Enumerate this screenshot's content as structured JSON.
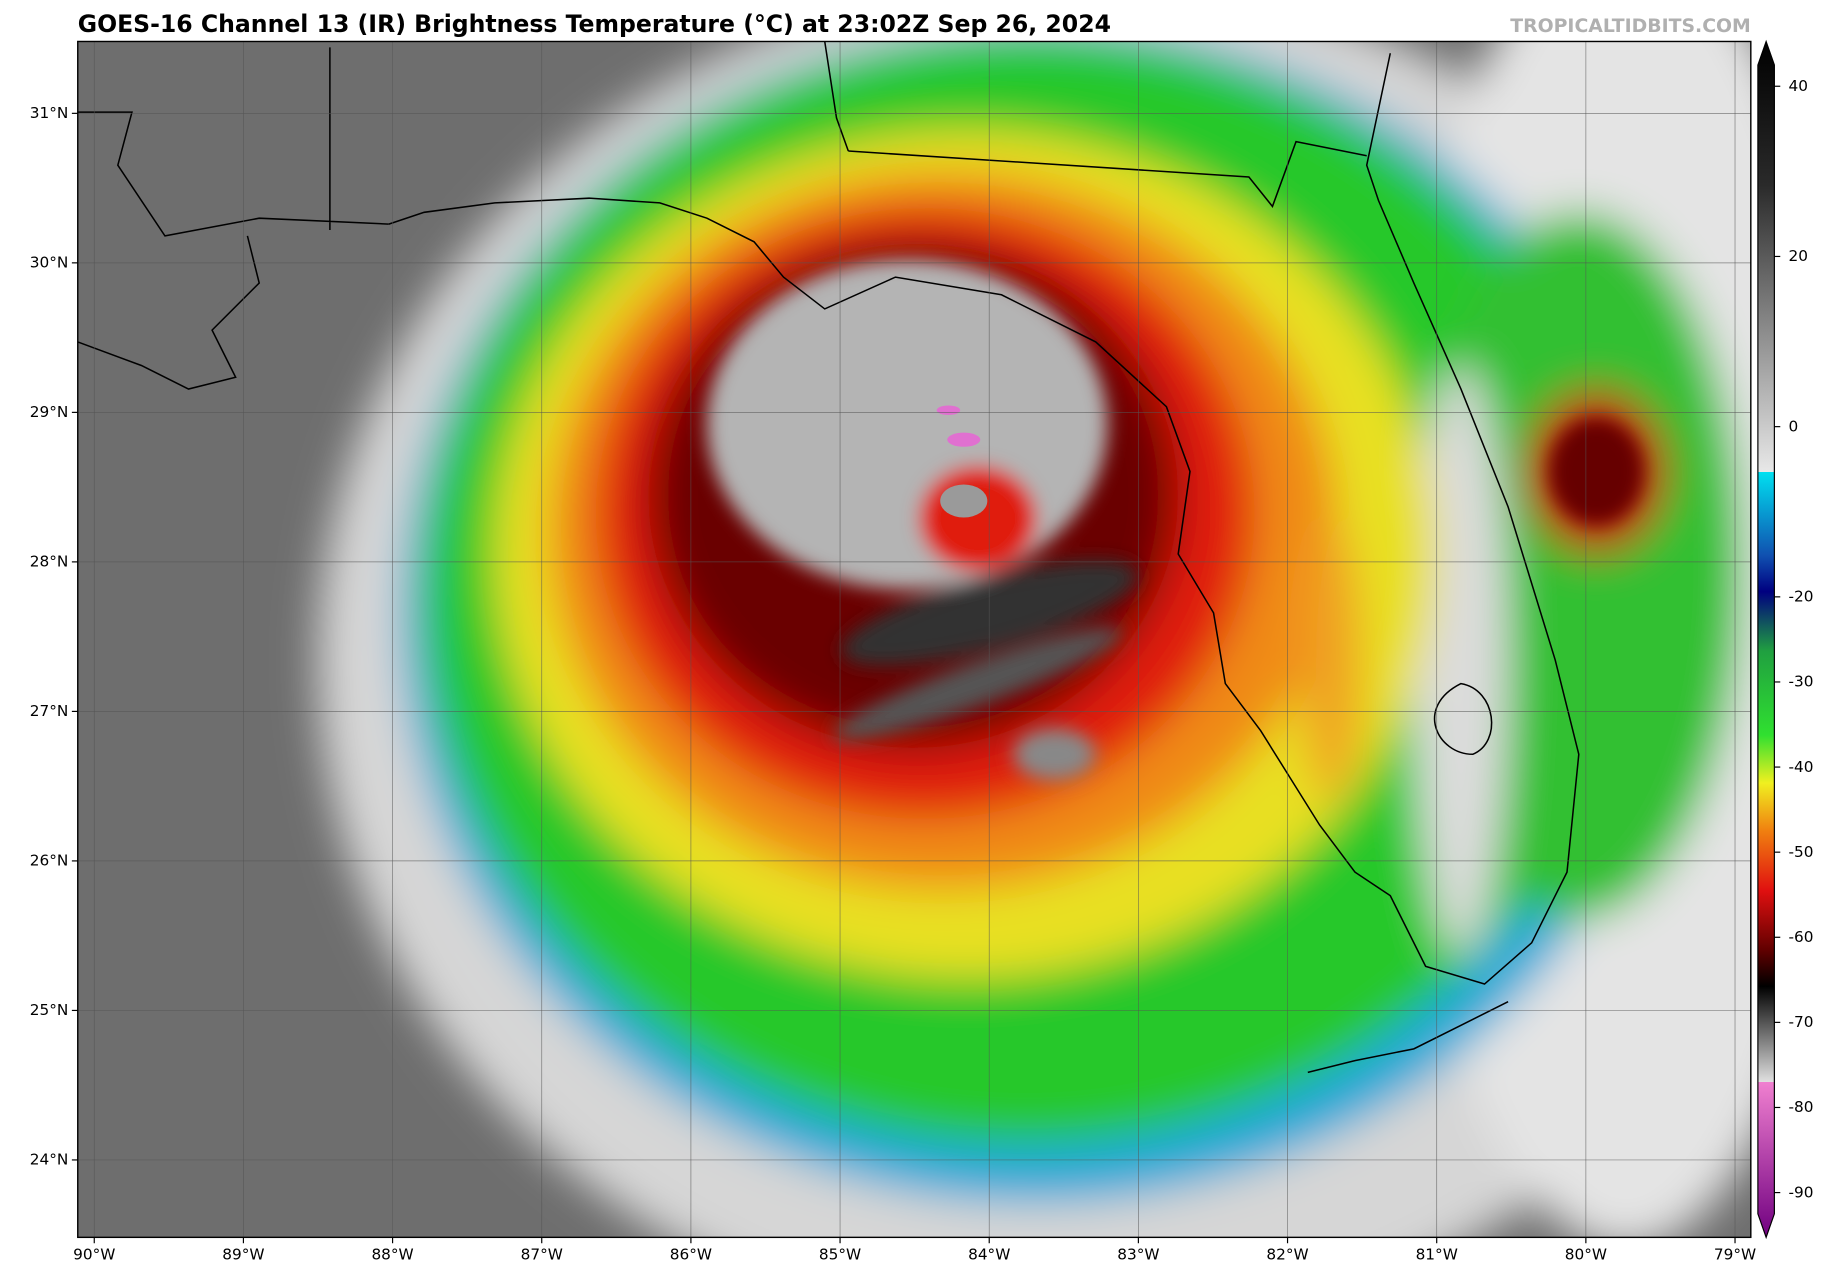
{
  "title": "GOES-16 Channel 13 (IR) Brightness Temperature (°C) at 23:02Z Sep 26, 2024",
  "watermark": "TROPICALTIDBITS.COM",
  "map": {
    "lat_labels": [
      "31°N",
      "30°N",
      "29°N",
      "28°N",
      "27°N",
      "26°N",
      "25°N",
      "24°N"
    ],
    "lon_labels": [
      "90°W",
      "89°W",
      "88°W",
      "87°W",
      "86°W",
      "85°W",
      "84°W",
      "83°W",
      "82°W",
      "81°W",
      "80°W",
      "79°W"
    ]
  },
  "colorbar": {
    "ticks": [
      40,
      20,
      0,
      -20,
      -30,
      -40,
      -50,
      -60,
      -70,
      -80,
      -90
    ]
  }
}
